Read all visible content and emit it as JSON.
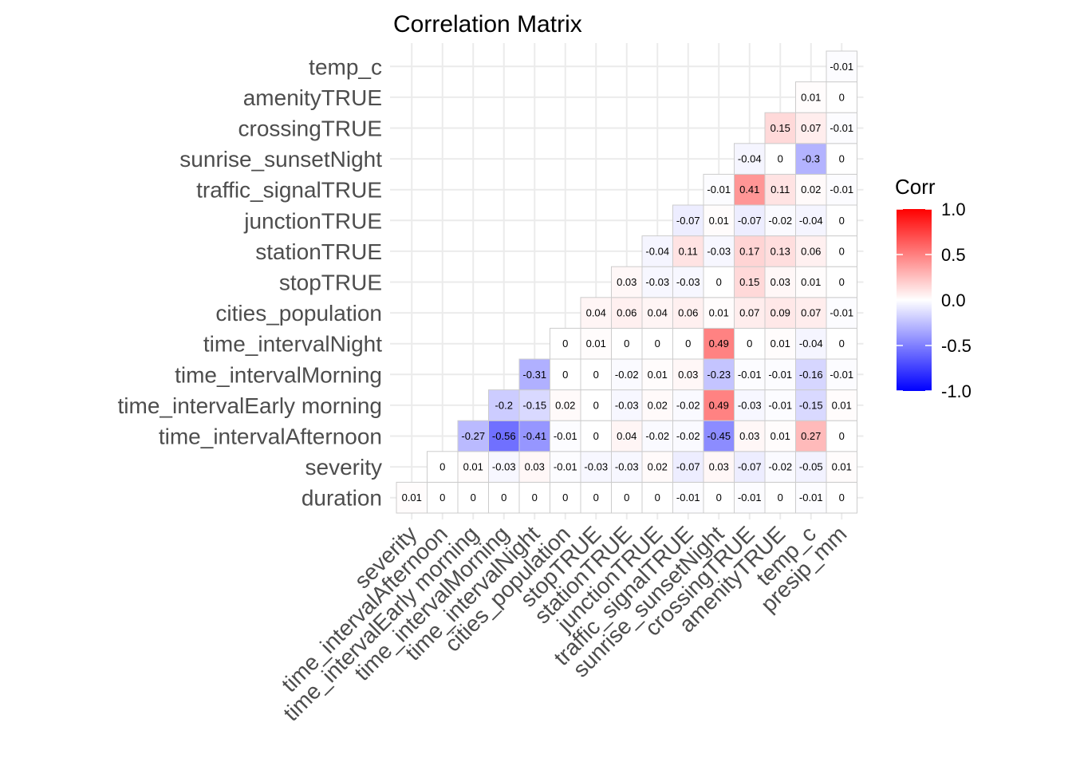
{
  "chart_data": {
    "type": "heatmap",
    "title": "Correlation Matrix",
    "variables": [
      "duration",
      "severity",
      "time_intervalAfternoon",
      "time_intervalEarly morning",
      "time_intervalMorning",
      "time_intervalNight",
      "cities_population",
      "stopTRUE",
      "stationTRUE",
      "junctionTRUE",
      "traffic_signalTRUE",
      "sunrise_sunsetNight",
      "crossingTRUE",
      "amenityTRUE",
      "temp_c",
      "presip_mm"
    ],
    "y_labels": [
      "duration",
      "severity",
      "time_intervalAfternoon",
      "time_intervalEarly morning",
      "time_intervalMorning",
      "time_intervalNight",
      "cities_population",
      "stopTRUE",
      "stationTRUE",
      "junctionTRUE",
      "traffic_signalTRUE",
      "sunrise_sunsetNight",
      "crossingTRUE",
      "amenityTRUE",
      "temp_c"
    ],
    "x_labels": [
      "severity",
      "time_intervalAfternoon",
      "time_intervalEarly morning",
      "time_intervalMorning",
      "time_intervalNight",
      "cities_population",
      "stopTRUE",
      "stationTRUE",
      "junctionTRUE",
      "traffic_signalTRUE",
      "sunrise_sunsetNight",
      "crossingTRUE",
      "amenityTRUE",
      "temp_c",
      "presip_mm"
    ],
    "rows": [
      {
        "variable": "duration",
        "values": [
          0.01,
          0,
          0,
          0,
          0,
          0,
          0,
          0,
          0,
          -0.01,
          0,
          -0.01,
          0,
          -0.01,
          0
        ]
      },
      {
        "variable": "severity",
        "values": [
          0,
          0.01,
          -0.03,
          0.03,
          -0.01,
          -0.03,
          -0.03,
          0.02,
          -0.07,
          0.03,
          -0.07,
          -0.02,
          -0.05,
          0.01
        ]
      },
      {
        "variable": "time_intervalAfternoon",
        "values": [
          -0.27,
          -0.56,
          -0.41,
          -0.01,
          0,
          0.04,
          -0.02,
          -0.02,
          -0.45,
          0.03,
          0.01,
          0.27,
          0
        ]
      },
      {
        "variable": "time_intervalEarly morning",
        "values": [
          -0.2,
          -0.15,
          0.02,
          0,
          -0.03,
          0.02,
          -0.02,
          0.49,
          -0.03,
          -0.01,
          -0.15,
          0.01
        ]
      },
      {
        "variable": "time_intervalMorning",
        "values": [
          -0.31,
          0,
          0,
          -0.02,
          0.01,
          0.03,
          -0.23,
          -0.01,
          -0.01,
          -0.16,
          -0.01
        ]
      },
      {
        "variable": "time_intervalNight",
        "values": [
          0,
          0.01,
          0,
          0,
          0,
          0.49,
          0,
          0.01,
          -0.04,
          0
        ]
      },
      {
        "variable": "cities_population",
        "values": [
          0.04,
          0.06,
          0.04,
          0.06,
          0.01,
          0.07,
          0.09,
          0.07,
          -0.01
        ]
      },
      {
        "variable": "stopTRUE",
        "values": [
          0.03,
          -0.03,
          -0.03,
          0,
          0.15,
          0.03,
          0.01,
          0
        ]
      },
      {
        "variable": "stationTRUE",
        "values": [
          -0.04,
          0.11,
          -0.03,
          0.17,
          0.13,
          0.06,
          0
        ]
      },
      {
        "variable": "junctionTRUE",
        "values": [
          -0.07,
          0.01,
          -0.07,
          -0.02,
          -0.04,
          0
        ]
      },
      {
        "variable": "traffic_signalTRUE",
        "values": [
          -0.01,
          0.41,
          0.11,
          0.02,
          -0.01
        ]
      },
      {
        "variable": "sunrise_sunsetNight",
        "values": [
          -0.04,
          0,
          -0.3,
          0
        ]
      },
      {
        "variable": "crossingTRUE",
        "values": [
          0.15,
          0.07,
          -0.01
        ]
      },
      {
        "variable": "amenityTRUE",
        "values": [
          0.01,
          0
        ]
      },
      {
        "variable": "temp_c",
        "values": [
          -0.01
        ]
      }
    ],
    "legend": {
      "title": "Corr",
      "position": "right",
      "colors": {
        "low": "#0000FF",
        "mid": "#FFFFFF",
        "high": "#FF0000"
      },
      "limits": [
        -1,
        1
      ],
      "breaks": [
        1.0,
        0.5,
        0.0,
        -0.5,
        -1.0
      ],
      "break_labels": [
        "1.0",
        "0.5",
        "0.0",
        "-0.5",
        "-1.0"
      ]
    },
    "grid": true
  }
}
